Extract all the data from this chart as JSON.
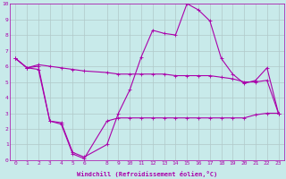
{
  "xlabel": "Windchill (Refroidissement éolien,°C)",
  "bg_color": "#c8eaea",
  "grid_color": "#b0c8c8",
  "line_color": "#aa00aa",
  "x_ticks": [
    0,
    1,
    2,
    3,
    4,
    5,
    6,
    8,
    9,
    10,
    11,
    12,
    13,
    14,
    15,
    16,
    17,
    18,
    19,
    20,
    21,
    22,
    23
  ],
  "ylim": [
    0,
    10
  ],
  "xlim": [
    -0.5,
    23.5
  ],
  "line1_x": [
    0,
    1,
    2,
    3,
    4,
    5,
    6,
    8,
    9,
    10,
    11,
    12,
    13,
    14,
    15,
    16,
    17,
    18,
    19,
    20,
    21,
    22,
    23
  ],
  "line1_y": [
    6.5,
    5.9,
    6.1,
    6.0,
    5.9,
    5.8,
    5.7,
    5.6,
    5.5,
    5.5,
    5.5,
    5.5,
    5.5,
    5.4,
    5.4,
    5.4,
    5.4,
    5.3,
    5.2,
    5.0,
    5.0,
    5.1,
    3.0
  ],
  "line2_x": [
    0,
    1,
    2,
    3,
    4,
    5,
    6,
    8,
    9,
    10,
    11,
    12,
    13,
    14,
    15,
    16,
    17,
    18,
    19,
    20,
    21,
    22,
    23
  ],
  "line2_y": [
    6.5,
    5.9,
    6.0,
    2.5,
    2.4,
    0.5,
    0.2,
    1.0,
    3.0,
    4.5,
    6.6,
    8.3,
    8.1,
    8.0,
    10.0,
    9.6,
    8.9,
    6.5,
    5.5,
    4.9,
    5.1,
    5.9,
    3.0
  ],
  "line3_x": [
    0,
    1,
    2,
    3,
    4,
    5,
    6,
    8,
    9,
    10,
    11,
    12,
    13,
    14,
    15,
    16,
    17,
    18,
    19,
    20,
    21,
    22,
    23
  ],
  "line3_y": [
    6.5,
    5.9,
    5.8,
    2.5,
    2.3,
    0.4,
    0.1,
    2.5,
    2.7,
    2.7,
    2.7,
    2.7,
    2.7,
    2.7,
    2.7,
    2.7,
    2.7,
    2.7,
    2.7,
    2.7,
    2.9,
    3.0,
    3.0
  ],
  "tick_fontsize": 4.5,
  "xlabel_fontsize": 5.0,
  "marker_size": 2.5,
  "linewidth": 0.8
}
